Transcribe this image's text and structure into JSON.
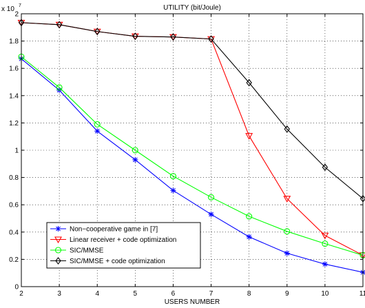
{
  "chart_data": {
    "type": "line",
    "title": "UTILITY (bit/Joule)",
    "xlabel": "USERS NUMBER",
    "ylabel": "",
    "y_multiplier_label": "x 10",
    "y_multiplier_exponent": "7",
    "xlim": [
      2,
      11
    ],
    "ylim": [
      0,
      2
    ],
    "x_ticks": [
      "2",
      "3",
      "4",
      "5",
      "6",
      "7",
      "8",
      "9",
      "10",
      "11"
    ],
    "y_ticks": [
      "0",
      "0.2",
      "0.4",
      "0.6",
      "0.8",
      "1",
      "1.2",
      "1.4",
      "1.6",
      "1.8",
      "2"
    ],
    "grid": true,
    "legend_position": "bottom-left",
    "x": [
      2,
      3,
      4,
      5,
      6,
      7,
      8,
      9,
      10,
      11
    ],
    "series": [
      {
        "name": "Non−cooperative game in [7]",
        "color": "#0000ff",
        "marker": "star",
        "values": [
          1.67,
          1.44,
          1.14,
          0.93,
          0.705,
          0.53,
          0.365,
          0.245,
          0.165,
          0.105
        ]
      },
      {
        "name": "Linear receiver + code optimization",
        "color": "#ff0000",
        "marker": "triangle-down",
        "values": [
          1.935,
          1.92,
          1.87,
          1.835,
          1.83,
          1.815,
          1.105,
          0.645,
          0.375,
          0.23
        ]
      },
      {
        "name": "SIC/MMSE",
        "color": "#00ff00",
        "marker": "circle",
        "values": [
          1.685,
          1.46,
          1.19,
          1.0,
          0.81,
          0.655,
          0.515,
          0.405,
          0.315,
          0.23
        ]
      },
      {
        "name": "SIC/MMSE + code optimization",
        "color": "#000000",
        "marker": "diamond",
        "values": [
          1.935,
          1.92,
          1.87,
          1.835,
          1.83,
          1.815,
          1.495,
          1.155,
          0.875,
          0.645
        ]
      }
    ]
  }
}
